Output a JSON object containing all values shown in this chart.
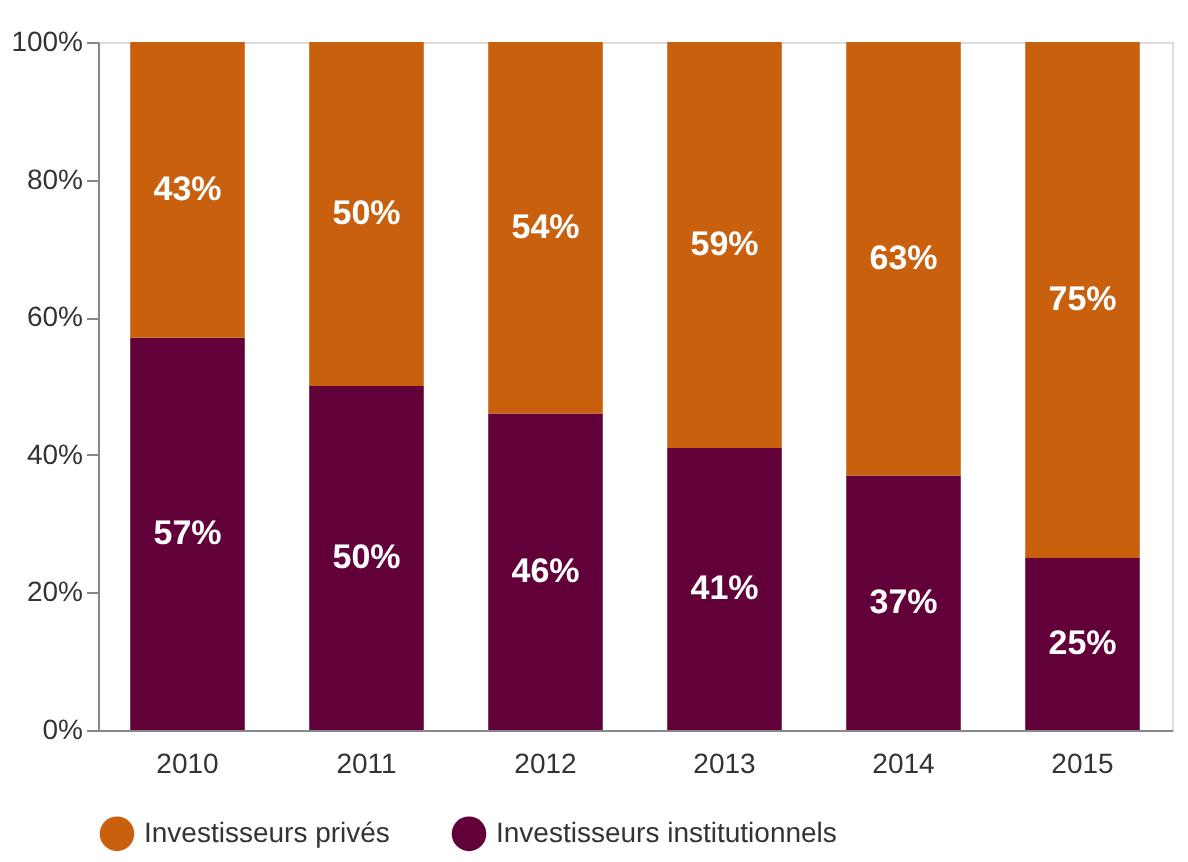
{
  "chart_data": {
    "type": "bar",
    "stacked": true,
    "categories": [
      "2010",
      "2011",
      "2012",
      "2013",
      "2014",
      "2015"
    ],
    "series": [
      {
        "name": "Investisseurs institutionnels",
        "color": "#62003a",
        "values": [
          57,
          50,
          46,
          41,
          37,
          25
        ],
        "value_labels": [
          "57%",
          "50%",
          "46%",
          "41%",
          "37%",
          "25%"
        ]
      },
      {
        "name": "Investisseurs privés",
        "color": "#c8600e",
        "values": [
          43,
          50,
          54,
          59,
          63,
          75
        ],
        "value_labels": [
          "43%",
          "50%",
          "54%",
          "59%",
          "63%",
          "75%"
        ]
      }
    ],
    "ylim": [
      0,
      100
    ],
    "yticks": [
      {
        "value": 0,
        "label": "0%"
      },
      {
        "value": 20,
        "label": "20%"
      },
      {
        "value": 40,
        "label": "40%"
      },
      {
        "value": 60,
        "label": "60%"
      },
      {
        "value": 80,
        "label": "80%"
      },
      {
        "value": 100,
        "label": "100%"
      }
    ],
    "grid": false,
    "legend": "bottom"
  }
}
